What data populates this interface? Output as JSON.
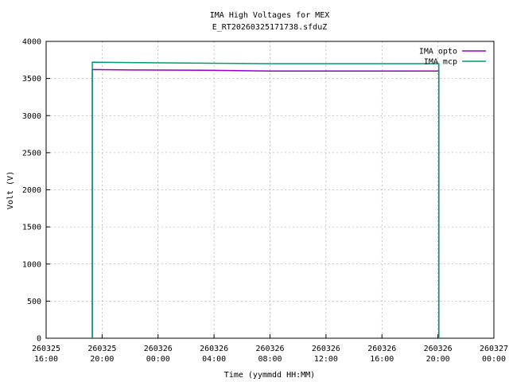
{
  "chart_data": {
    "type": "line",
    "title": "IMA High Voltages for MEX",
    "subtitle": "E_RT20260325171738.sfduZ",
    "x_label": "Time (yymmdd HH:MM)",
    "y_label": "Volt (V)",
    "x": [
      "260325 19:18",
      "260325 19:18",
      "260325 22:00",
      "260326 04:00",
      "260326 08:00",
      "260326 12:00",
      "260326 16:00",
      "260326 20:04",
      "260326 20:04"
    ],
    "series": [
      {
        "name": "IMA opto",
        "color": "#9400d3",
        "values": [
          0,
          3620,
          3615,
          3610,
          3600,
          3600,
          3600,
          3600,
          0
        ]
      },
      {
        "name": "IMA mcp",
        "color": "#009e73",
        "values": [
          0,
          3720,
          3715,
          3705,
          3700,
          3700,
          3700,
          3700,
          0
        ]
      }
    ],
    "xlim": [
      "260325 16:00",
      "260327 00:00"
    ],
    "xticks": [
      "260325 16:00",
      "260325 20:00",
      "260326 00:00",
      "260326 04:00",
      "260326 08:00",
      "260326 12:00",
      "260326 16:00",
      "260326 20:00",
      "260327 00:00"
    ],
    "ylim": [
      0,
      4000
    ],
    "yticks": [
      0,
      500,
      1000,
      1500,
      2000,
      2500,
      3000,
      3500,
      4000
    ],
    "grid": true,
    "legend": "top-right"
  }
}
